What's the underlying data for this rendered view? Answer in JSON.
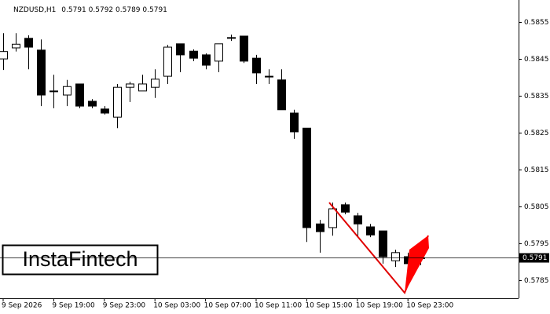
{
  "chart_data": {
    "type": "candlestick",
    "title": "NZDUSD,H1",
    "logo": "InstaFintech",
    "categories": [
      "9 Sep 2026",
      null,
      null,
      null,
      "9 Sep 19:00",
      null,
      null,
      null,
      "9 Sep 23:00",
      null,
      null,
      null,
      "10 Sep 03:00",
      null,
      null,
      null,
      "10 Sep 07:00",
      null,
      null,
      null,
      "10 Sep 11:00",
      null,
      null,
      null,
      "10 Sep 15:00",
      null,
      null,
      null,
      "10 Sep 19:00",
      null,
      null,
      null,
      "10 Sep 23:00",
      null
    ],
    "open": [
      0.5845,
      0.5848,
      0.58506,
      0.58474,
      0.58363,
      0.58352,
      0.58382,
      0.58335,
      0.58314,
      0.58292,
      0.58373,
      0.58363,
      0.58373,
      0.58403,
      0.58491,
      0.58471,
      0.58461,
      0.58444,
      0.58508,
      0.58512,
      0.58452,
      0.58403,
      0.58393,
      0.58303,
      0.58262,
      0.58002,
      0.57992,
      0.58054,
      0.58024,
      0.57994,
      0.57983,
      0.57902,
      0.57913,
      0.5791
    ],
    "high": [
      0.5852,
      0.5852,
      0.58514,
      0.58503,
      0.58407,
      0.58393,
      0.58382,
      0.58341,
      0.58322,
      0.58382,
      0.58388,
      0.58407,
      0.58422,
      0.58488,
      0.58491,
      0.58476,
      0.58465,
      0.58491,
      0.58516,
      0.58512,
      0.58461,
      0.58422,
      0.58422,
      0.58312,
      0.58262,
      0.58013,
      0.5806,
      0.5806,
      0.58032,
      0.58002,
      0.57983,
      0.57932,
      0.57924,
      0.5792
    ],
    "low": [
      0.5842,
      0.5847,
      0.58422,
      0.58322,
      0.58316,
      0.58322,
      0.58316,
      0.58316,
      0.58299,
      0.58262,
      0.58333,
      0.58363,
      0.58344,
      0.58382,
      0.58414,
      0.58444,
      0.58422,
      0.58414,
      0.58499,
      0.58439,
      0.58382,
      0.58382,
      0.58312,
      0.58233,
      0.57953,
      0.57924,
      0.5797,
      0.58028,
      0.5797,
      0.57966,
      0.57894,
      0.57885,
      0.57881,
      0.5789
    ],
    "close": [
      0.5847,
      0.5849,
      0.58482,
      0.58352,
      0.58363,
      0.58375,
      0.58322,
      0.58322,
      0.58303,
      0.58373,
      0.58382,
      0.58382,
      0.58395,
      0.58482,
      0.58461,
      0.58452,
      0.58433,
      0.58491,
      0.58508,
      0.58444,
      0.58412,
      0.58403,
      0.58312,
      0.58252,
      0.57992,
      0.57981,
      0.58043,
      0.58034,
      0.58002,
      0.57972,
      0.57913,
      0.57924,
      0.57894,
      0.5791
    ],
    "up_color": "#ffffff",
    "down_color": "#000000",
    "ylim": [
      0.578,
      0.5861
    ],
    "yticks": [
      0.5785,
      0.5795,
      0.5805,
      0.5815,
      0.5825,
      0.5835,
      0.5845,
      0.5855
    ]
  }
}
